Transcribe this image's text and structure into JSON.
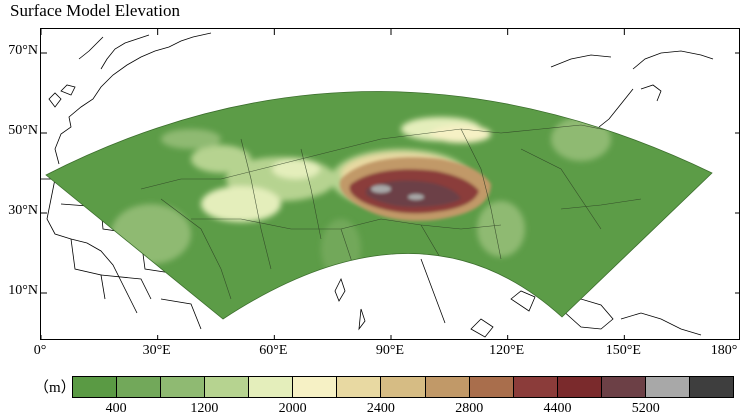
{
  "title": "Surface Model Elevation",
  "y_ticks": [
    {
      "label": "70°N",
      "lat": 70
    },
    {
      "label": "50°N",
      "lat": 50
    },
    {
      "label": "30°N",
      "lat": 30
    },
    {
      "label": "10°N",
      "lat": 10
    }
  ],
  "x_ticks": [
    {
      "label": "0°",
      "lon": 0
    },
    {
      "label": "30°E",
      "lon": 30
    },
    {
      "label": "60°E",
      "lon": 60
    },
    {
      "label": "90°E",
      "lon": 90
    },
    {
      "label": "120°E",
      "lon": 120
    },
    {
      "label": "150°E",
      "lon": 150
    },
    {
      "label": "180°",
      "lon": 180
    }
  ],
  "colorbar": {
    "unit": "（m）",
    "colors": [
      "#5a9a44",
      "#72a85a",
      "#8fba72",
      "#b6d390",
      "#e4eebb",
      "#f6f1c5",
      "#e8d9a2",
      "#d6bc84",
      "#c19968",
      "#a96e4c",
      "#8b3c3a",
      "#7a2a2c",
      "#6c4046",
      "#a8a8a8",
      "#3e3e3e"
    ],
    "labels": [
      {
        "text": "400",
        "index": 1
      },
      {
        "text": "1200",
        "index": 3
      },
      {
        "text": "2000",
        "index": 5
      },
      {
        "text": "2400",
        "index": 7
      },
      {
        "text": "2800",
        "index": 9
      },
      {
        "text": "4400",
        "index": 11
      },
      {
        "text": "5200",
        "index": 13
      }
    ]
  },
  "map": {
    "lon_range": [
      0,
      180
    ],
    "lat_range": [
      -2,
      76
    ],
    "domain_color": "#5c9c47",
    "land_line_color": "#000000"
  }
}
